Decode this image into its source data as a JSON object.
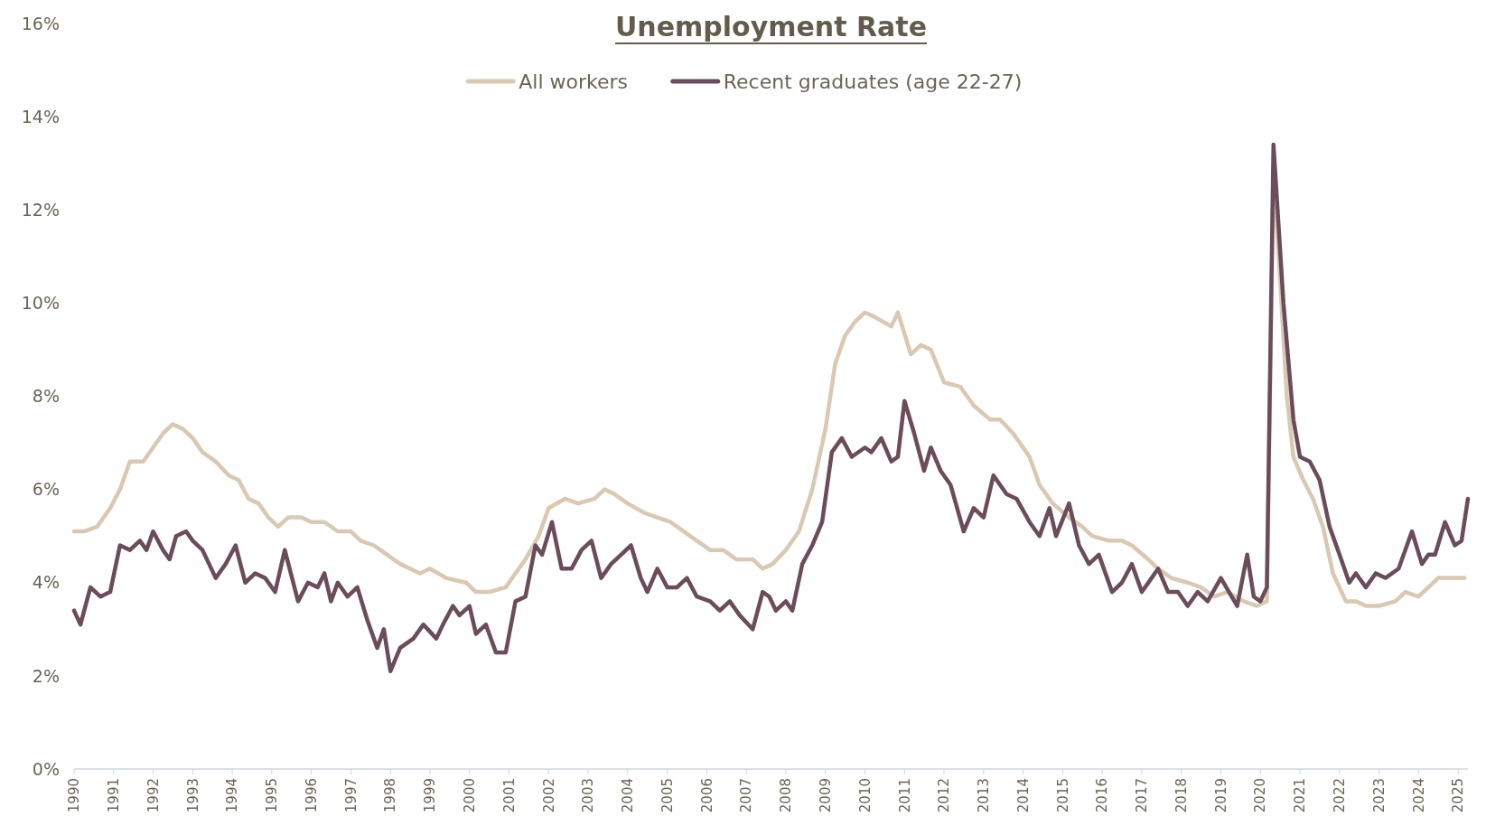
{
  "chart_data": {
    "type": "line",
    "title": "Unemployment Rate",
    "legend": "top",
    "grid": false,
    "line_style": "solid",
    "marker": "none",
    "xlim": [
      "1990-01",
      "2025-04"
    ],
    "xticks": [
      {
        "value": "1990-01",
        "label": "1990"
      },
      {
        "value": "1991-01",
        "label": "1991"
      },
      {
        "value": "1992-01",
        "label": "1992"
      },
      {
        "value": "1993-01",
        "label": "1993"
      },
      {
        "value": "1994-01",
        "label": "1994"
      },
      {
        "value": "1995-01",
        "label": "1995"
      },
      {
        "value": "1996-01",
        "label": "1996"
      },
      {
        "value": "1997-01",
        "label": "1997"
      },
      {
        "value": "1998-01",
        "label": "1998"
      },
      {
        "value": "1999-01",
        "label": "1999"
      },
      {
        "value": "2000-01",
        "label": "2000"
      },
      {
        "value": "2001-01",
        "label": "2001"
      },
      {
        "value": "2002-01",
        "label": "2002"
      },
      {
        "value": "2003-01",
        "label": "2003"
      },
      {
        "value": "2004-01",
        "label": "2004"
      },
      {
        "value": "2005-01",
        "label": "2005"
      },
      {
        "value": "2006-01",
        "label": "2006"
      },
      {
        "value": "2007-01",
        "label": "2007"
      },
      {
        "value": "2008-01",
        "label": "2008"
      },
      {
        "value": "2009-01",
        "label": "2009"
      },
      {
        "value": "2010-01",
        "label": "2010"
      },
      {
        "value": "2011-01",
        "label": "2011"
      },
      {
        "value": "2012-01",
        "label": "2012"
      },
      {
        "value": "2013-01",
        "label": "2013"
      },
      {
        "value": "2014-01",
        "label": "2014"
      },
      {
        "value": "2015-01",
        "label": "2015"
      },
      {
        "value": "2016-01",
        "label": "2016"
      },
      {
        "value": "2017-01",
        "label": "2017"
      },
      {
        "value": "2018-01",
        "label": "2018"
      },
      {
        "value": "2019-01",
        "label": "2019"
      },
      {
        "value": "2020-01",
        "label": "2020"
      },
      {
        "value": "2021-01",
        "label": "2021"
      },
      {
        "value": "2022-01",
        "label": "2022"
      },
      {
        "value": "2023-01",
        "label": "2023"
      },
      {
        "value": "2024-01",
        "label": "2024"
      },
      {
        "value": "2025-01",
        "label": "2025"
      }
    ],
    "ylim": [
      0,
      16
    ],
    "yticks": [
      {
        "value": 0,
        "label": "0%"
      },
      {
        "value": 2,
        "label": "2%"
      },
      {
        "value": 4,
        "label": "4%"
      },
      {
        "value": 6,
        "label": "6%"
      },
      {
        "value": 8,
        "label": "8%"
      },
      {
        "value": 10,
        "label": "10%"
      },
      {
        "value": 12,
        "label": "12%"
      },
      {
        "value": 14,
        "label": "14%"
      },
      {
        "value": 16,
        "label": "16%"
      }
    ],
    "series": [
      {
        "name": "All workers",
        "color": "#d9c9b3",
        "x": [
          "1990-01",
          "1990-04",
          "1990-08",
          "1990-12",
          "1991-03",
          "1991-06",
          "1991-10",
          "1992-01",
          "1992-04",
          "1992-07",
          "1992-10",
          "1993-01",
          "1993-04",
          "1993-08",
          "1993-12",
          "1994-03",
          "1994-06",
          "1994-09",
          "1994-12",
          "1995-03",
          "1995-06",
          "1995-10",
          "1996-01",
          "1996-05",
          "1996-09",
          "1997-01",
          "1997-04",
          "1997-08",
          "1997-12",
          "1998-04",
          "1998-07",
          "1998-10",
          "1999-01",
          "1999-06",
          "1999-12",
          "2000-03",
          "2000-07",
          "2000-12",
          "2001-03",
          "2001-06",
          "2001-10",
          "2002-01",
          "2002-06",
          "2002-10",
          "2003-03",
          "2003-06",
          "2003-09",
          "2004-01",
          "2004-06",
          "2004-10",
          "2005-02",
          "2005-06",
          "2005-10",
          "2006-02",
          "2006-06",
          "2006-10",
          "2007-03",
          "2007-06",
          "2007-09",
          "2008-01",
          "2008-05",
          "2008-09",
          "2009-01",
          "2009-04",
          "2009-07",
          "2009-10",
          "2010-01",
          "2010-04",
          "2010-09",
          "2010-11",
          "2011-03",
          "2011-06",
          "2011-09",
          "2012-01",
          "2012-06",
          "2012-10",
          "2013-03",
          "2013-06",
          "2013-10",
          "2014-03",
          "2014-06",
          "2014-10",
          "2015-03",
          "2015-07",
          "2015-10",
          "2016-03",
          "2016-07",
          "2016-10",
          "2017-03",
          "2017-06",
          "2017-10",
          "2018-03",
          "2018-07",
          "2018-11",
          "2019-03",
          "2019-08",
          "2019-12",
          "2020-03",
          "2020-05",
          "2020-07",
          "2020-09",
          "2020-11",
          "2021-02",
          "2021-05",
          "2021-08",
          "2021-11",
          "2022-03",
          "2022-06",
          "2022-09",
          "2023-01",
          "2023-06",
          "2023-09",
          "2024-01",
          "2024-04",
          "2024-07",
          "2024-10",
          "2025-03"
        ],
        "values": [
          5.1,
          5.1,
          5.2,
          5.6,
          6.0,
          6.6,
          6.6,
          6.9,
          7.2,
          7.4,
          7.3,
          7.1,
          6.8,
          6.6,
          6.3,
          6.2,
          5.8,
          5.7,
          5.4,
          5.2,
          5.4,
          5.4,
          5.3,
          5.3,
          5.1,
          5.1,
          4.9,
          4.8,
          4.6,
          4.4,
          4.3,
          4.2,
          4.3,
          4.1,
          4.0,
          3.8,
          3.8,
          3.9,
          4.2,
          4.5,
          5.0,
          5.6,
          5.8,
          5.7,
          5.8,
          6.0,
          5.9,
          5.7,
          5.5,
          5.4,
          5.3,
          5.1,
          4.9,
          4.7,
          4.7,
          4.5,
          4.5,
          4.3,
          4.4,
          4.7,
          5.1,
          6.0,
          7.3,
          8.7,
          9.3,
          9.6,
          9.8,
          9.7,
          9.5,
          9.8,
          8.9,
          9.1,
          9.0,
          8.3,
          8.2,
          7.8,
          7.5,
          7.5,
          7.2,
          6.7,
          6.1,
          5.7,
          5.4,
          5.2,
          5.0,
          4.9,
          4.9,
          4.8,
          4.5,
          4.3,
          4.1,
          4.0,
          3.9,
          3.7,
          3.8,
          3.6,
          3.5,
          3.6,
          12.9,
          10.5,
          8.0,
          6.7,
          6.2,
          5.8,
          5.2,
          4.2,
          3.6,
          3.6,
          3.5,
          3.5,
          3.6,
          3.8,
          3.7,
          3.9,
          4.1,
          4.1,
          4.1
        ]
      },
      {
        "name": "Recent graduates (age 22-27)",
        "color": "#6b4c5a",
        "x": [
          "1990-01",
          "1990-03",
          "1990-06",
          "1990-09",
          "1990-12",
          "1991-03",
          "1991-06",
          "1991-09",
          "1991-11",
          "1992-01",
          "1992-04",
          "1992-06",
          "1992-08",
          "1992-11",
          "1993-01",
          "1993-04",
          "1993-08",
          "1993-11",
          "1994-02",
          "1994-05",
          "1994-08",
          "1994-11",
          "1995-02",
          "1995-05",
          "1995-09",
          "1995-12",
          "1996-03",
          "1996-05",
          "1996-07",
          "1996-09",
          "1996-12",
          "1997-03",
          "1997-06",
          "1997-09",
          "1997-11",
          "1998-01",
          "1998-04",
          "1998-08",
          "1998-11",
          "1999-03",
          "1999-05",
          "1999-08",
          "1999-10",
          "2000-01",
          "2000-03",
          "2000-06",
          "2000-09",
          "2000-12",
          "2001-03",
          "2001-06",
          "2001-09",
          "2001-11",
          "2002-02",
          "2002-05",
          "2002-08",
          "2002-11",
          "2003-02",
          "2003-05",
          "2003-08",
          "2003-11",
          "2004-02",
          "2004-05",
          "2004-07",
          "2004-10",
          "2005-01",
          "2005-04",
          "2005-07",
          "2005-10",
          "2006-02",
          "2006-05",
          "2006-08",
          "2006-11",
          "2007-03",
          "2007-06",
          "2007-08",
          "2007-10",
          "2008-01",
          "2008-03",
          "2008-06",
          "2008-09",
          "2008-12",
          "2009-03",
          "2009-06",
          "2009-09",
          "2010-01",
          "2010-03",
          "2010-06",
          "2010-09",
          "2010-11",
          "2011-01",
          "2011-04",
          "2011-07",
          "2011-09",
          "2011-12",
          "2012-03",
          "2012-07",
          "2012-10",
          "2013-01",
          "2013-04",
          "2013-08",
          "2013-11",
          "2014-03",
          "2014-06",
          "2014-09",
          "2014-11",
          "2015-03",
          "2015-06",
          "2015-09",
          "2015-12",
          "2016-04",
          "2016-07",
          "2016-10",
          "2017-01",
          "2017-06",
          "2017-09",
          "2017-12",
          "2018-03",
          "2018-06",
          "2018-09",
          "2019-01",
          "2019-06",
          "2019-09",
          "2019-11",
          "2020-01",
          "2020-03",
          "2020-05",
          "2020-08",
          "2020-11",
          "2021-01",
          "2021-04",
          "2021-07",
          "2021-10",
          "2022-01",
          "2022-04",
          "2022-06",
          "2022-09",
          "2022-12",
          "2023-03",
          "2023-07",
          "2023-11",
          "2024-02",
          "2024-04",
          "2024-06",
          "2024-09",
          "2024-12",
          "2025-02",
          "2025-04"
        ],
        "values": [
          3.4,
          3.1,
          3.9,
          3.7,
          3.8,
          4.8,
          4.7,
          4.9,
          4.7,
          5.1,
          4.7,
          4.5,
          5.0,
          5.1,
          4.9,
          4.7,
          4.1,
          4.4,
          4.8,
          4.0,
          4.2,
          4.1,
          3.8,
          4.7,
          3.6,
          4.0,
          3.9,
          4.2,
          3.6,
          4.0,
          3.7,
          3.9,
          3.2,
          2.6,
          3.0,
          2.1,
          2.6,
          2.8,
          3.1,
          2.8,
          3.1,
          3.5,
          3.3,
          3.5,
          2.9,
          3.1,
          2.5,
          2.5,
          3.6,
          3.7,
          4.8,
          4.6,
          5.3,
          4.3,
          4.3,
          4.7,
          4.9,
          4.1,
          4.4,
          4.6,
          4.8,
          4.1,
          3.8,
          4.3,
          3.9,
          3.9,
          4.1,
          3.7,
          3.6,
          3.4,
          3.6,
          3.3,
          3.0,
          3.8,
          3.7,
          3.4,
          3.6,
          3.4,
          4.4,
          4.8,
          5.3,
          6.8,
          7.1,
          6.7,
          6.9,
          6.8,
          7.1,
          6.6,
          6.7,
          7.9,
          7.2,
          6.4,
          6.9,
          6.4,
          6.1,
          5.1,
          5.6,
          5.4,
          6.3,
          5.9,
          5.8,
          5.3,
          5.0,
          5.6,
          5.0,
          5.7,
          4.8,
          4.4,
          4.6,
          3.8,
          4.0,
          4.4,
          3.8,
          4.3,
          3.8,
          3.8,
          3.5,
          3.8,
          3.6,
          4.1,
          3.5,
          4.6,
          3.7,
          3.6,
          3.9,
          13.4,
          10.0,
          7.5,
          6.7,
          6.6,
          6.2,
          5.2,
          4.6,
          4.0,
          4.2,
          3.9,
          4.2,
          4.1,
          4.3,
          5.1,
          4.4,
          4.6,
          4.6,
          5.3,
          4.8,
          4.9,
          5.8
        ]
      }
    ]
  }
}
